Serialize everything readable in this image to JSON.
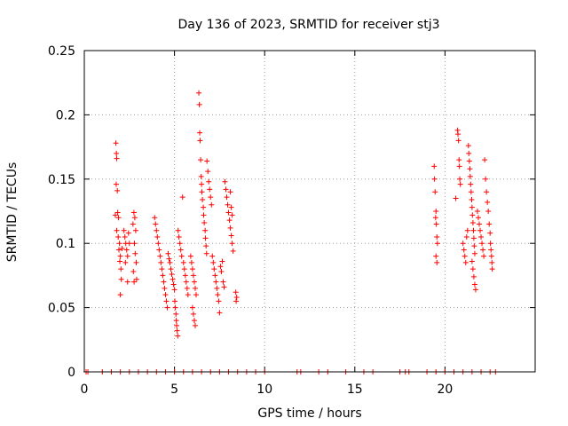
{
  "chart_data": {
    "type": "scatter",
    "title": "Day 136 of 2023, SRMTID for receiver stj3",
    "xlabel": "GPS time / hours",
    "ylabel": "SRMTID / TECUs",
    "xlim": [
      0,
      25
    ],
    "ylim": [
      0,
      0.25
    ],
    "xticks": [
      0,
      5,
      10,
      15,
      20
    ],
    "xtick_labels": [
      "0",
      "5",
      "10",
      "15",
      "20"
    ],
    "yticks": [
      0,
      0.05,
      0.1,
      0.15,
      0.2,
      0.25
    ],
    "ytick_labels": [
      "0",
      "0.05",
      "0.1",
      "0.15",
      "0.2",
      "0.25"
    ],
    "grid": true,
    "marker": "+",
    "color": "#ff0000",
    "series": [
      {
        "name": "SRMTID",
        "points": [
          [
            1.75,
            0.178
          ],
          [
            1.78,
            0.17
          ],
          [
            1.8,
            0.166
          ],
          [
            1.77,
            0.146
          ],
          [
            1.83,
            0.141
          ],
          [
            1.85,
            0.124
          ],
          [
            1.72,
            0.122
          ],
          [
            1.9,
            0.12
          ],
          [
            1.8,
            0.11
          ],
          [
            1.88,
            0.105
          ],
          [
            1.95,
            0.1
          ],
          [
            1.92,
            0.095
          ],
          [
            2.0,
            0.09
          ],
          [
            1.97,
            0.086
          ],
          [
            2.03,
            0.08
          ],
          [
            2.05,
            0.072
          ],
          [
            2.0,
            0.06
          ],
          [
            2.1,
            0.096
          ],
          [
            2.2,
            0.11
          ],
          [
            2.25,
            0.105
          ],
          [
            2.3,
            0.1
          ],
          [
            2.35,
            0.095
          ],
          [
            2.4,
            0.09
          ],
          [
            2.45,
            0.108
          ],
          [
            2.28,
            0.085
          ],
          [
            2.5,
            0.1
          ],
          [
            2.4,
            0.07
          ],
          [
            2.75,
            0.124
          ],
          [
            2.8,
            0.12
          ],
          [
            2.7,
            0.115
          ],
          [
            2.85,
            0.11
          ],
          [
            2.78,
            0.1
          ],
          [
            2.82,
            0.092
          ],
          [
            2.88,
            0.085
          ],
          [
            2.72,
            0.078
          ],
          [
            2.9,
            0.072
          ],
          [
            2.76,
            0.07
          ],
          [
            3.9,
            0.12
          ],
          [
            3.95,
            0.115
          ],
          [
            4.0,
            0.11
          ],
          [
            4.05,
            0.105
          ],
          [
            4.1,
            0.1
          ],
          [
            4.15,
            0.095
          ],
          [
            4.2,
            0.09
          ],
          [
            4.25,
            0.085
          ],
          [
            4.3,
            0.08
          ],
          [
            4.35,
            0.075
          ],
          [
            4.4,
            0.07
          ],
          [
            4.45,
            0.065
          ],
          [
            4.5,
            0.06
          ],
          [
            4.55,
            0.055
          ],
          [
            4.6,
            0.05
          ],
          [
            4.65,
            0.092
          ],
          [
            4.7,
            0.088
          ],
          [
            4.75,
            0.085
          ],
          [
            4.8,
            0.08
          ],
          [
            4.85,
            0.076
          ],
          [
            4.9,
            0.072
          ],
          [
            4.95,
            0.068
          ],
          [
            5.0,
            0.064
          ],
          [
            5.02,
            0.055
          ],
          [
            5.05,
            0.05
          ],
          [
            5.08,
            0.045
          ],
          [
            5.1,
            0.04
          ],
          [
            5.12,
            0.036
          ],
          [
            5.15,
            0.032
          ],
          [
            5.18,
            0.028
          ],
          [
            5.2,
            0.11
          ],
          [
            5.25,
            0.105
          ],
          [
            5.3,
            0.1
          ],
          [
            5.35,
            0.095
          ],
          [
            5.4,
            0.09
          ],
          [
            5.45,
            0.136
          ],
          [
            5.5,
            0.085
          ],
          [
            5.55,
            0.08
          ],
          [
            5.6,
            0.075
          ],
          [
            5.65,
            0.07
          ],
          [
            5.7,
            0.065
          ],
          [
            5.75,
            0.06
          ],
          [
            5.9,
            0.09
          ],
          [
            5.95,
            0.085
          ],
          [
            6.0,
            0.08
          ],
          [
            6.05,
            0.075
          ],
          [
            6.1,
            0.07
          ],
          [
            6.15,
            0.065
          ],
          [
            6.2,
            0.06
          ],
          [
            6.0,
            0.05
          ],
          [
            6.05,
            0.045
          ],
          [
            6.1,
            0.04
          ],
          [
            6.15,
            0.036
          ],
          [
            6.35,
            0.217
          ],
          [
            6.38,
            0.208
          ],
          [
            6.4,
            0.186
          ],
          [
            6.42,
            0.18
          ],
          [
            6.45,
            0.165
          ],
          [
            6.48,
            0.152
          ],
          [
            6.5,
            0.146
          ],
          [
            6.52,
            0.14
          ],
          [
            6.55,
            0.134
          ],
          [
            6.6,
            0.128
          ],
          [
            6.62,
            0.122
          ],
          [
            6.65,
            0.116
          ],
          [
            6.7,
            0.11
          ],
          [
            6.72,
            0.104
          ],
          [
            6.75,
            0.098
          ],
          [
            6.78,
            0.092
          ],
          [
            6.8,
            0.164
          ],
          [
            6.85,
            0.156
          ],
          [
            6.9,
            0.148
          ],
          [
            6.95,
            0.142
          ],
          [
            7.0,
            0.136
          ],
          [
            7.05,
            0.13
          ],
          [
            7.1,
            0.09
          ],
          [
            7.15,
            0.085
          ],
          [
            7.2,
            0.08
          ],
          [
            7.25,
            0.075
          ],
          [
            7.3,
            0.07
          ],
          [
            7.35,
            0.065
          ],
          [
            7.4,
            0.06
          ],
          [
            7.45,
            0.055
          ],
          [
            7.5,
            0.046
          ],
          [
            7.55,
            0.082
          ],
          [
            7.6,
            0.078
          ],
          [
            7.65,
            0.086
          ],
          [
            7.7,
            0.07
          ],
          [
            7.75,
            0.066
          ],
          [
            7.8,
            0.148
          ],
          [
            7.85,
            0.142
          ],
          [
            7.9,
            0.136
          ],
          [
            7.95,
            0.13
          ],
          [
            8.0,
            0.124
          ],
          [
            8.05,
            0.118
          ],
          [
            8.1,
            0.112
          ],
          [
            8.15,
            0.106
          ],
          [
            8.2,
            0.1
          ],
          [
            8.25,
            0.094
          ],
          [
            8.1,
            0.14
          ],
          [
            8.15,
            0.128
          ],
          [
            8.2,
            0.122
          ],
          [
            8.4,
            0.062
          ],
          [
            8.45,
            0.058
          ],
          [
            8.42,
            0.055
          ],
          [
            19.4,
            0.16
          ],
          [
            19.42,
            0.15
          ],
          [
            19.45,
            0.14
          ],
          [
            19.5,
            0.125
          ],
          [
            19.48,
            0.12
          ],
          [
            19.52,
            0.115
          ],
          [
            19.55,
            0.105
          ],
          [
            19.58,
            0.1
          ],
          [
            19.5,
            0.09
          ],
          [
            19.55,
            0.085
          ],
          [
            20.7,
            0.188
          ],
          [
            20.72,
            0.185
          ],
          [
            20.75,
            0.18
          ],
          [
            20.78,
            0.165
          ],
          [
            20.8,
            0.16
          ],
          [
            20.82,
            0.15
          ],
          [
            20.85,
            0.146
          ],
          [
            20.6,
            0.135
          ],
          [
            21.0,
            0.1
          ],
          [
            21.05,
            0.095
          ],
          [
            21.1,
            0.09
          ],
          [
            21.15,
            0.085
          ],
          [
            21.2,
            0.105
          ],
          [
            21.25,
            0.11
          ],
          [
            21.3,
            0.176
          ],
          [
            21.32,
            0.17
          ],
          [
            21.35,
            0.164
          ],
          [
            21.38,
            0.158
          ],
          [
            21.4,
            0.152
          ],
          [
            21.42,
            0.146
          ],
          [
            21.45,
            0.14
          ],
          [
            21.48,
            0.134
          ],
          [
            21.5,
            0.128
          ],
          [
            21.52,
            0.122
          ],
          [
            21.55,
            0.116
          ],
          [
            21.58,
            0.11
          ],
          [
            21.6,
            0.104
          ],
          [
            21.62,
            0.098
          ],
          [
            21.65,
            0.092
          ],
          [
            21.5,
            0.086
          ],
          [
            21.55,
            0.08
          ],
          [
            21.6,
            0.074
          ],
          [
            21.65,
            0.068
          ],
          [
            21.7,
            0.064
          ],
          [
            21.8,
            0.125
          ],
          [
            21.85,
            0.12
          ],
          [
            21.9,
            0.115
          ],
          [
            21.95,
            0.11
          ],
          [
            22.0,
            0.105
          ],
          [
            22.05,
            0.1
          ],
          [
            22.1,
            0.095
          ],
          [
            22.15,
            0.09
          ],
          [
            22.2,
            0.165
          ],
          [
            22.25,
            0.15
          ],
          [
            22.3,
            0.14
          ],
          [
            22.35,
            0.132
          ],
          [
            22.4,
            0.125
          ],
          [
            22.45,
            0.115
          ],
          [
            22.5,
            0.108
          ],
          [
            22.52,
            0.1
          ],
          [
            22.55,
            0.095
          ],
          [
            22.58,
            0.09
          ],
          [
            22.6,
            0.085
          ],
          [
            22.62,
            0.08
          ],
          [
            0.1,
            0
          ],
          [
            0.2,
            0
          ],
          [
            1.0,
            0
          ],
          [
            1.5,
            0
          ],
          [
            2.0,
            0
          ],
          [
            2.5,
            0
          ],
          [
            3.0,
            0
          ],
          [
            3.5,
            0
          ],
          [
            4.0,
            0
          ],
          [
            4.5,
            0
          ],
          [
            5.0,
            0
          ],
          [
            5.5,
            0
          ],
          [
            6.0,
            0
          ],
          [
            6.5,
            0
          ],
          [
            7.0,
            0
          ],
          [
            7.5,
            0
          ],
          [
            8.0,
            0
          ],
          [
            8.5,
            0
          ],
          [
            9.0,
            0
          ],
          [
            9.5,
            0
          ],
          [
            10.0,
            0
          ],
          [
            11.8,
            0
          ],
          [
            12.0,
            0
          ],
          [
            13.0,
            0
          ],
          [
            13.5,
            0
          ],
          [
            14.5,
            0
          ],
          [
            15.5,
            0
          ],
          [
            16.0,
            0
          ],
          [
            17.5,
            0
          ],
          [
            17.8,
            0
          ],
          [
            18.0,
            0
          ],
          [
            19.0,
            0
          ],
          [
            19.5,
            0
          ],
          [
            20.0,
            0
          ],
          [
            20.5,
            0
          ],
          [
            21.0,
            0
          ],
          [
            21.5,
            0
          ],
          [
            22.0,
            0
          ],
          [
            22.5,
            0
          ],
          [
            22.8,
            0
          ]
        ]
      }
    ]
  }
}
